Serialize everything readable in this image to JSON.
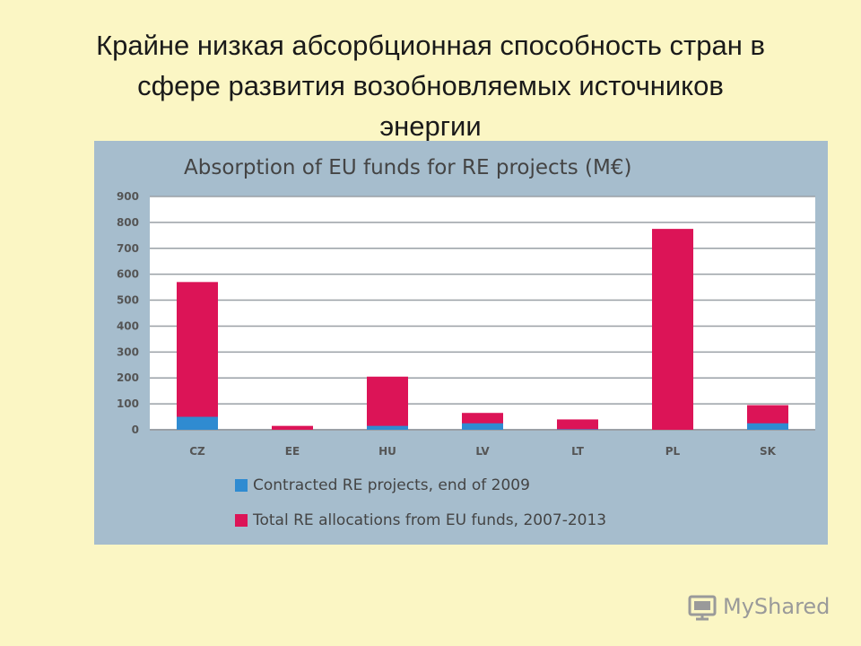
{
  "slide": {
    "title_lines": [
      "Крайне низкая абсорбционная способность стран в",
      "сфере развития возобновляемых источников",
      "энергии"
    ]
  },
  "watermark": {
    "text": "MyShared",
    "icon": "myshared-logo-icon"
  },
  "colors": {
    "slide_bg": "#fbf6c4",
    "panel_bg": "#a6bdcd",
    "plot_bg": "#ffffff",
    "contracted": "#2f8bd1",
    "total": "#dc1457",
    "grid": "#9aa0a6"
  },
  "chart_data": {
    "type": "bar",
    "title": "Absorption of EU funds for RE projects (M€)",
    "categories": [
      "CZ",
      "EE",
      "HU",
      "LV",
      "LT",
      "PL",
      "SK"
    ],
    "series": [
      {
        "name": "Contracted RE projects, end of 2009",
        "values": [
          50,
          0,
          15,
          25,
          2,
          0,
          25
        ]
      },
      {
        "name": "Total RE allocations from EU funds, 2007-2013",
        "values": [
          570,
          15,
          205,
          65,
          40,
          775,
          95
        ]
      }
    ],
    "ylim": [
      0,
      900
    ],
    "yticks": [
      0,
      100,
      200,
      300,
      400,
      500,
      600,
      700,
      800,
      900
    ],
    "grid": true,
    "legend": "bottom-left",
    "xlabel": "",
    "ylabel": ""
  }
}
